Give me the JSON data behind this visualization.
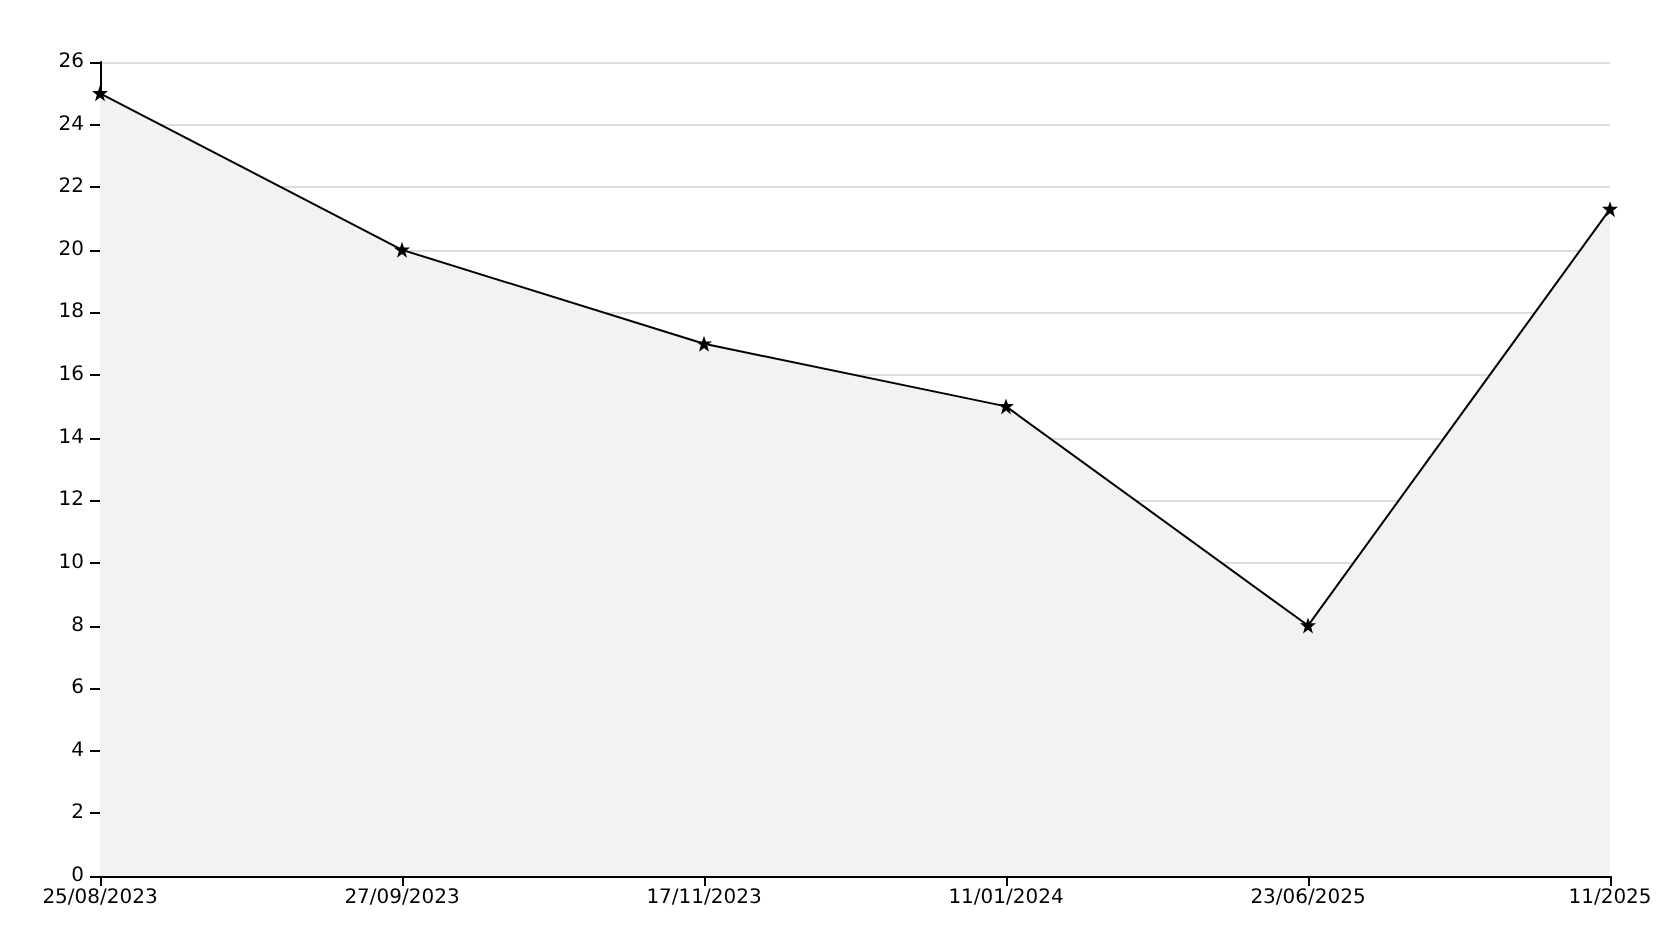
{
  "chart_data": {
    "type": "area",
    "categories": [
      "25/08/2023",
      "27/09/2023",
      "17/11/2023",
      "11/01/2024",
      "23/06/2025",
      "11/2025"
    ],
    "series": [
      {
        "color": "#000000",
        "values": [
          25,
          20,
          17,
          15,
          8,
          21.3
        ]
      }
    ],
    "ylim": [
      0,
      26
    ],
    "yticks": [
      0,
      2,
      4,
      6,
      8,
      10,
      12,
      14,
      16,
      18,
      20,
      22,
      24,
      26
    ],
    "grid": "y",
    "marker": "star",
    "line_style": "solid"
  }
}
